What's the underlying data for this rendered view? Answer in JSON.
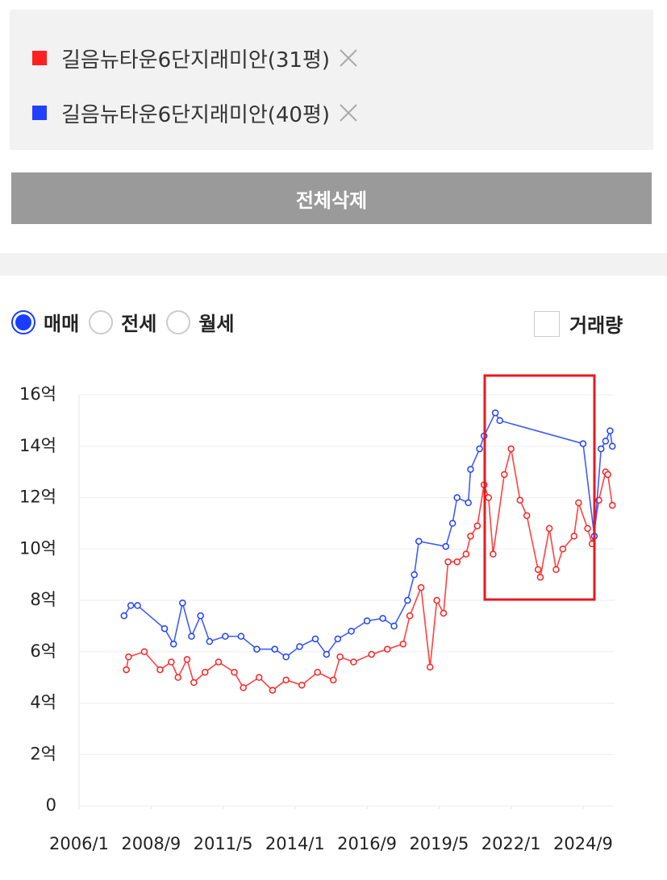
{
  "controls": {
    "delete_all": "전체삭제",
    "radio_options": [
      "매매",
      "전세",
      "월세"
    ],
    "volume_checkbox": "거래량"
  },
  "chart_data": {
    "type": "line",
    "xlim": [
      "2006/1",
      "2025/11"
    ],
    "xticks": [
      "2006/1",
      "2008/9",
      "2011/5",
      "2014/1",
      "2016/9",
      "2019/5",
      "2022/1",
      "2024/9"
    ],
    "ylim": [
      0,
      16
    ],
    "yticks": [
      0,
      {
        "value": 2,
        "label": "2억"
      },
      {
        "value": 4,
        "label": "4억"
      },
      {
        "value": 6,
        "label": "6억"
      },
      {
        "value": 8,
        "label": "8억"
      },
      {
        "value": 10,
        "label": "10억"
      },
      {
        "value": 12,
        "label": "12억"
      },
      {
        "value": 14,
        "label": "14억"
      },
      {
        "value": 16,
        "label": "16억"
      }
    ],
    "grid": true,
    "series": [
      {
        "name": "길음뉴타운6단지래미안(31평)",
        "color": "#ff2020",
        "x": [
          "2007/10",
          "2007/11",
          "2008/6",
          "2009/1",
          "2009/6",
          "2009/9",
          "2010/1",
          "2010/4",
          "2010/9",
          "2011/3",
          "2011/10",
          "2012/2",
          "2012/9",
          "2013/3",
          "2013/9",
          "2014/4",
          "2014/11",
          "2015/6",
          "2015/9",
          "2016/3",
          "2016/11",
          "2017/6",
          "2018/1",
          "2018/4",
          "2018/9",
          "2019/1",
          "2019/4",
          "2019/7",
          "2019/9",
          "2020/1",
          "2020/5",
          "2020/7",
          "2020/10",
          "2021/1",
          "2021/3",
          "2021/5",
          "2021/10",
          "2022/1",
          "2022/5",
          "2022/8",
          "2023/1",
          "2023/2",
          "2023/6",
          "2023/9",
          "2023/12",
          "2024/5",
          "2024/7",
          "2024/11",
          "2025/1",
          "2025/4",
          "2025/7",
          "2025/8",
          "2025/10"
        ],
        "values": [
          5.3,
          5.8,
          6.0,
          5.3,
          5.6,
          5.0,
          5.7,
          4.8,
          5.2,
          5.6,
          5.2,
          4.6,
          5.0,
          4.5,
          4.9,
          4.7,
          5.2,
          4.9,
          5.8,
          5.6,
          5.9,
          6.1,
          6.3,
          7.4,
          8.5,
          5.4,
          8.0,
          7.5,
          9.5,
          9.5,
          9.8,
          10.5,
          10.9,
          12.5,
          12.0,
          9.8,
          12.9,
          13.9,
          11.9,
          11.3,
          9.2,
          8.9,
          10.8,
          9.2,
          10.0,
          10.5,
          11.8,
          10.8,
          10.2,
          11.9,
          13.0,
          12.9,
          11.7
        ]
      },
      {
        "name": "길음뉴타운6단지래미안(40평)",
        "color": "#2040ff",
        "x": [
          "2007/9",
          "2007/12",
          "2008/3",
          "2009/3",
          "2009/7",
          "2009/11",
          "2010/3",
          "2010/7",
          "2010/11",
          "2011/6",
          "2012/1",
          "2012/8",
          "2013/4",
          "2013/9",
          "2014/3",
          "2014/10",
          "2015/3",
          "2015/8",
          "2016/2",
          "2016/9",
          "2017/4",
          "2017/9",
          "2018/3",
          "2018/6",
          "2018/8",
          "2019/8",
          "2019/11",
          "2020/1",
          "2020/6",
          "2020/7",
          "2020/11",
          "2021/1",
          "2021/6",
          "2021/8",
          "2024/9",
          "2025/2",
          "2025/5",
          "2025/7",
          "2025/9",
          "2025/10"
        ],
        "values": [
          7.4,
          7.8,
          7.8,
          6.9,
          6.3,
          7.9,
          6.6,
          7.4,
          6.4,
          6.6,
          6.6,
          6.1,
          6.1,
          5.8,
          6.2,
          6.5,
          5.9,
          6.5,
          6.8,
          7.2,
          7.3,
          7.0,
          8.0,
          9.0,
          10.3,
          10.1,
          11.0,
          12.0,
          11.8,
          13.1,
          13.9,
          14.4,
          15.3,
          15.0,
          14.1,
          10.5,
          13.9,
          14.2,
          14.6,
          14.0
        ]
      }
    ]
  }
}
